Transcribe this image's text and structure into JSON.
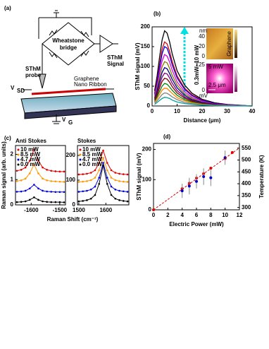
{
  "diagram": {
    "label": "(a)",
    "bridge": [
      "Wheatstone",
      "bridge"
    ],
    "signal": [
      "SThM",
      "Signal"
    ],
    "probe": [
      "SThM",
      "probe"
    ],
    "ribbon": [
      "Graphene",
      "Nano Ribbon"
    ],
    "vsd": {
      "main": "V",
      "sub": "SD"
    },
    "vg": {
      "main": "V",
      "sub": "G"
    }
  },
  "chart_data": [
    {
      "type": "line",
      "title": "(b)",
      "xlabel": "Distance (μm)",
      "ylabel": "SThM signal (mV)",
      "annotation": "0.3mW~10 mW",
      "inset": {
        "unit_top": "nm",
        "top_ticks": [
          40,
          20,
          0
        ],
        "label_top": "Graphene",
        "label_bottom": "5 mW",
        "bottom_ticks": [
          125,
          0
        ],
        "unit_bottom": "mV",
        "scale_bar": "2.5 μm"
      },
      "xlim": [
        0,
        40
      ],
      "xticks": [
        0,
        10,
        20,
        30,
        40
      ],
      "ylim": [
        0,
        200
      ],
      "yticks": [
        0,
        50,
        100,
        150,
        200
      ],
      "x": [
        1,
        2,
        3,
        4,
        5,
        6,
        7,
        8,
        10,
        13,
        16,
        20,
        25,
        30,
        40
      ],
      "series": [
        {
          "color": "#000000",
          "values": [
            38,
            76,
            124,
            167,
            190,
            184,
            162,
            133,
            89,
            53,
            32,
            17,
            8,
            4,
            0
          ]
        },
        {
          "color": "#e00000",
          "values": [
            32,
            65,
            105,
            143,
            162,
            157,
            138,
            113,
            76,
            45,
            28,
            15,
            6,
            3,
            0
          ]
        },
        {
          "color": "#0000e0",
          "values": [
            30,
            60,
            98,
            132,
            150,
            146,
            128,
            105,
            71,
            42,
            26,
            14,
            6,
            3,
            0
          ]
        },
        {
          "color": "#e000e0",
          "values": [
            26,
            52,
            85,
            114,
            130,
            126,
            111,
            91,
            61,
            36,
            22,
            12,
            5,
            3,
            0
          ]
        },
        {
          "color": "#808000",
          "values": [
            22,
            45,
            73,
            99,
            112,
            109,
            95,
            78,
            53,
            31,
            19,
            10,
            4,
            2,
            0
          ]
        },
        {
          "color": "#000080",
          "values": [
            19,
            39,
            63,
            85,
            97,
            94,
            82,
            68,
            46,
            27,
            16,
            9,
            4,
            2,
            0
          ]
        },
        {
          "color": "#800080",
          "values": [
            17,
            33,
            54,
            73,
            83,
            81,
            71,
            58,
            39,
            23,
            14,
            7,
            3,
            2,
            0
          ]
        },
        {
          "color": "#800000",
          "values": [
            14,
            28,
            46,
            62,
            70,
            68,
            60,
            49,
            33,
            20,
            12,
            6,
            3,
            1,
            0
          ]
        },
        {
          "color": "#008000",
          "values": [
            11,
            23,
            37,
            50,
            57,
            55,
            48,
            40,
            27,
            16,
            10,
            5,
            2,
            1,
            0
          ]
        },
        {
          "color": "#ff8000",
          "values": [
            9,
            18,
            29,
            40,
            45,
            44,
            38,
            32,
            21,
            13,
            8,
            4,
            2,
            1,
            0
          ]
        },
        {
          "color": "#808080",
          "values": [
            7,
            13,
            21,
            29,
            33,
            32,
            28,
            23,
            16,
            9,
            6,
            3,
            1,
            1,
            0
          ]
        },
        {
          "color": "#00a0a0",
          "values": [
            4,
            9,
            14,
            19,
            22,
            21,
            19,
            15,
            10,
            6,
            4,
            2,
            1,
            0,
            0
          ]
        }
      ]
    },
    {
      "type": "line",
      "title": "(c)",
      "subtitle": "Anti Stokes",
      "xlabel": "Raman Shift (cm⁻¹)",
      "ylabel": "Raman signal (arb. units)",
      "markers": true,
      "xlim": [
        -1655,
        -1480
      ],
      "xticks": [
        -1600,
        -1500
      ],
      "ylim": [
        0,
        2.35
      ],
      "yticks": [
        0,
        1,
        2
      ],
      "x": [
        -1650,
        -1635,
        -1620,
        -1605,
        -1590,
        -1575,
        -1560,
        -1545,
        -1530,
        -1515,
        -1500,
        -1485
      ],
      "series": [
        {
          "name": "10 mW",
          "color": "#e00000",
          "values": [
            1.35,
            1.39,
            1.48,
            1.75,
            2.2,
            1.75,
            1.48,
            1.39,
            1.35,
            1.33,
            1.32,
            1.32
          ]
        },
        {
          "name": "8.5 mW",
          "color": "#ff9900",
          "values": [
            0.94,
            0.97,
            1.04,
            1.25,
            1.6,
            1.25,
            1.04,
            0.97,
            0.94,
            0.93,
            0.92,
            0.91
          ]
        },
        {
          "name": "4.7 mW",
          "color": "#0000e0",
          "values": [
            0.52,
            0.53,
            0.56,
            0.65,
            0.8,
            0.65,
            0.56,
            0.53,
            0.52,
            0.51,
            0.51,
            0.51
          ]
        },
        {
          "name": "0.0 mW",
          "color": "#000000",
          "values": [
            0.11,
            0.12,
            0.14,
            0.2,
            0.3,
            0.2,
            0.14,
            0.12,
            0.11,
            0.11,
            0.11,
            0.1
          ]
        }
      ]
    },
    {
      "type": "line",
      "subtitle": "Stokes",
      "markers": true,
      "xlim": [
        1495,
        1685
      ],
      "xticks": [
        1500,
        1600
      ],
      "ylim": [
        0,
        240
      ],
      "yticks": [
        0,
        100,
        200
      ],
      "x": [
        1500,
        1515,
        1530,
        1545,
        1560,
        1575,
        1590,
        1605,
        1620,
        1635,
        1650,
        1665,
        1680
      ],
      "series": [
        {
          "name": "10 mW",
          "color": "#e00000",
          "values": [
            123,
            124,
            126,
            130,
            140,
            170,
            220,
            170,
            140,
            130,
            126,
            124,
            123
          ]
        },
        {
          "name": "8.5 mW",
          "color": "#ff9900",
          "values": [
            93,
            94,
            96,
            100,
            110,
            140,
            190,
            140,
            110,
            100,
            96,
            94,
            93
          ]
        },
        {
          "name": "4.7 mW",
          "color": "#0000e0",
          "values": [
            53,
            55,
            57,
            62,
            74,
            110,
            170,
            110,
            74,
            62,
            57,
            55,
            53
          ]
        },
        {
          "name": "0.0 mW",
          "color": "#000000",
          "values": [
            14,
            16,
            19,
            25,
            40,
            85,
            160,
            85,
            40,
            25,
            19,
            16,
            14
          ]
        }
      ]
    },
    {
      "type": "scatter",
      "title": "(d)",
      "xlabel": "Electric Power (mW)",
      "ylabel": "SThM signal (mV)",
      "y2label": "Temperature (K)",
      "xlim": [
        0,
        12
      ],
      "xticks": [
        0,
        2,
        4,
        6,
        8,
        10,
        12
      ],
      "ylim": [
        0,
        220
      ],
      "yticks": [
        0,
        100,
        200
      ],
      "y2lim": [
        290,
        570
      ],
      "y2ticks": [
        300,
        350,
        400,
        450,
        500,
        550
      ],
      "series": [
        {
          "color": "#e00000",
          "x": [
            0,
            4,
            5,
            6,
            7,
            8,
            10,
            11
          ],
          "values": [
            0,
            70,
            88,
            105,
            120,
            138,
            170,
            190
          ]
        },
        {
          "color": "#0000cc",
          "axis": "y2",
          "x": [
            4,
            5,
            6,
            7,
            8,
            10
          ],
          "values": [
            370,
            390,
            410,
            430,
            425,
            510
          ],
          "errors": [
            30,
            35,
            30,
            35,
            35,
            30
          ]
        },
        {
          "color": "#e00000",
          "dashed": true,
          "x": [
            0,
            12
          ],
          "values": [
            0,
            205
          ]
        }
      ]
    }
  ]
}
